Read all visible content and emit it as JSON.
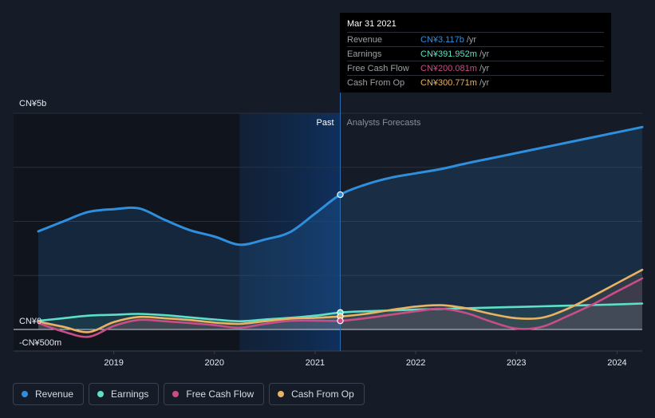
{
  "colors": {
    "revenue": "#2f8fdd",
    "earnings": "#5ee0c8",
    "free_cash_flow": "#c94d86",
    "cash_from_op": "#e8b363"
  },
  "tooltip": {
    "date": "Mar 31 2021",
    "rows": [
      {
        "label": "Revenue",
        "value": "CN¥3.117b",
        "unit": "/yr",
        "color": "#2f8fdd"
      },
      {
        "label": "Earnings",
        "value": "CN¥391.952m",
        "unit": "/yr",
        "color": "#5ee0c8"
      },
      {
        "label": "Free Cash Flow",
        "value": "CN¥200.081m",
        "unit": "/yr",
        "color": "#c94d86"
      },
      {
        "label": "Cash From Op",
        "value": "CN¥300.771m",
        "unit": "/yr",
        "color": "#e8b363"
      }
    ]
  },
  "legend": {
    "items": [
      {
        "label": "Revenue",
        "color": "#2f8fdd"
      },
      {
        "label": "Earnings",
        "color": "#5ee0c8"
      },
      {
        "label": "Free Cash Flow",
        "color": "#c94d86"
      },
      {
        "label": "Cash From Op",
        "color": "#e8b363"
      }
    ]
  },
  "chart_data": {
    "type": "line",
    "title": "",
    "xlabel": "",
    "ylabel": "",
    "xlim": [
      2018.25,
      2024.25
    ],
    "ylim": [
      -500,
      5000
    ],
    "past_label": "Past",
    "forecast_label": "Analysts Forecasts",
    "y_tick_labels": [
      {
        "value": 5000,
        "label": "CN¥5b"
      },
      {
        "value": 0,
        "label": "CN¥0"
      },
      {
        "value": -500,
        "label": "-CN¥500m"
      }
    ],
    "x_ticks": [
      {
        "value": 2019,
        "label": "2019"
      },
      {
        "value": 2020,
        "label": "2020"
      },
      {
        "value": 2021,
        "label": "2021"
      },
      {
        "value": 2022,
        "label": "2022"
      },
      {
        "value": 2023,
        "label": "2023"
      },
      {
        "value": 2024,
        "label": "2024"
      }
    ],
    "past_region": [
      2020.25,
      2021.25
    ],
    "highlight_x": 2021.25,
    "series": [
      {
        "name": "Revenue",
        "key": "revenue",
        "x": [
          2018.25,
          2018.5,
          2018.75,
          2019.0,
          2019.25,
          2019.5,
          2019.75,
          2020.0,
          2020.25,
          2020.5,
          2020.75,
          2021.0,
          2021.25,
          2021.5,
          2021.75,
          2022.0,
          2022.25,
          2022.5,
          2022.75,
          2023.0,
          2023.25,
          2023.5,
          2023.75,
          2024.0,
          2024.25
        ],
        "values": [
          2270,
          2500,
          2720,
          2780,
          2800,
          2540,
          2300,
          2150,
          1960,
          2080,
          2250,
          2680,
          3117,
          3350,
          3510,
          3610,
          3710,
          3840,
          3960,
          4080,
          4200,
          4320,
          4440,
          4560,
          4680
        ]
      },
      {
        "name": "Earnings",
        "key": "earnings",
        "x": [
          2018.25,
          2018.5,
          2018.75,
          2019.0,
          2019.25,
          2019.5,
          2019.75,
          2020.0,
          2020.25,
          2020.5,
          2020.75,
          2021.0,
          2021.25,
          2021.5,
          2021.75,
          2022.0,
          2022.25,
          2022.5,
          2022.75,
          2023.0,
          2023.25,
          2023.5,
          2023.75,
          2024.0,
          2024.25
        ],
        "values": [
          200,
          260,
          320,
          340,
          360,
          330,
          280,
          230,
          190,
          230,
          270,
          320,
          392,
          420,
          440,
          460,
          475,
          490,
          505,
          520,
          535,
          550,
          565,
          580,
          600
        ]
      },
      {
        "name": "Free Cash Flow",
        "key": "free_cash_flow",
        "x": [
          2018.25,
          2018.5,
          2018.75,
          2019.0,
          2019.25,
          2019.5,
          2019.75,
          2020.0,
          2020.25,
          2020.5,
          2020.75,
          2021.0,
          2021.25,
          2021.5,
          2021.75,
          2022.0,
          2022.25,
          2022.5,
          2022.75,
          2023.0,
          2023.25,
          2023.5,
          2023.75,
          2024.0,
          2024.25
        ],
        "values": [
          150,
          -50,
          -170,
          80,
          220,
          190,
          150,
          100,
          40,
          130,
          200,
          205,
          200,
          260,
          340,
          420,
          480,
          380,
          180,
          20,
          60,
          300,
          570,
          880,
          1180
        ]
      },
      {
        "name": "Cash From Op",
        "key": "cash_from_op",
        "x": [
          2018.25,
          2018.5,
          2018.75,
          2019.0,
          2019.25,
          2019.5,
          2019.75,
          2020.0,
          2020.25,
          2020.5,
          2020.75,
          2021.0,
          2021.25,
          2021.5,
          2021.75,
          2022.0,
          2022.25,
          2022.5,
          2022.75,
          2023.0,
          2023.25,
          2023.5,
          2023.75,
          2024.0,
          2024.25
        ],
        "values": [
          180,
          60,
          -60,
          170,
          290,
          260,
          220,
          160,
          130,
          190,
          250,
          270,
          301,
          360,
          450,
          530,
          560,
          490,
          360,
          260,
          270,
          470,
          760,
          1070,
          1380
        ]
      }
    ]
  }
}
